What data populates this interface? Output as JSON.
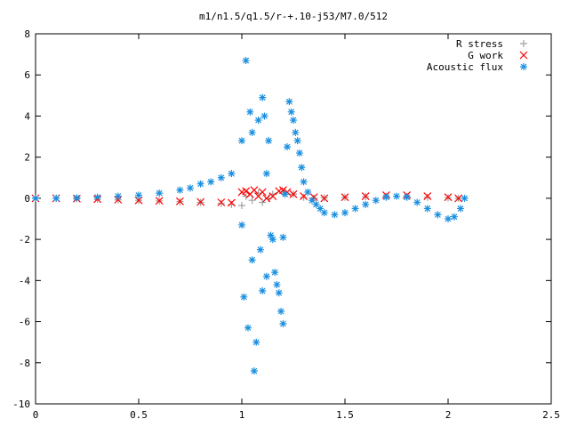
{
  "chart_data": {
    "type": "scatter",
    "title": "m1/n1.5/q1.5/r-+.10-j53/M7.0/512",
    "xlabel": "",
    "ylabel": "",
    "xlim": [
      0,
      2.5
    ],
    "ylim": [
      -10,
      8
    ],
    "x_ticks": [
      0,
      0.5,
      1,
      1.5,
      2,
      2.5
    ],
    "x_tick_labels": [
      "0",
      "0.5",
      "1",
      "1.5",
      "2",
      "2.5"
    ],
    "y_ticks": [
      -10,
      -8,
      -6,
      -4,
      -2,
      0,
      2,
      4,
      6,
      8
    ],
    "y_tick_labels": [
      "-10",
      "-8",
      "-6",
      "-4",
      "-2",
      "0",
      "2",
      "4",
      "6",
      "8"
    ],
    "grid": false,
    "legend_position": "top-right",
    "series": [
      {
        "name": "R stress",
        "marker": "plus",
        "color": "#a0a0a0",
        "x": [
          0.0,
          0.1,
          0.2,
          0.3,
          0.4,
          0.5,
          0.6,
          0.7,
          0.8,
          0.9,
          0.95,
          1.0,
          1.02,
          1.05,
          1.08,
          1.1,
          1.13,
          1.15,
          1.2,
          1.25,
          1.3,
          1.35,
          1.4,
          1.5,
          1.6,
          1.7,
          1.8,
          1.9,
          2.0,
          2.05
        ],
        "y": [
          0.0,
          0.0,
          -0.02,
          -0.05,
          -0.08,
          -0.1,
          -0.13,
          -0.16,
          -0.2,
          -0.25,
          -0.3,
          -0.35,
          0.1,
          -0.1,
          0.25,
          -0.2,
          0.0,
          0.2,
          0.3,
          0.2,
          0.05,
          0.0,
          0.02,
          0.05,
          0.08,
          0.1,
          0.1,
          0.05,
          0.02,
          0.0
        ]
      },
      {
        "name": "G work",
        "marker": "x",
        "color": "#ff0000",
        "x": [
          0.0,
          0.1,
          0.2,
          0.3,
          0.4,
          0.5,
          0.6,
          0.7,
          0.8,
          0.9,
          0.95,
          1.0,
          1.02,
          1.04,
          1.06,
          1.08,
          1.1,
          1.12,
          1.15,
          1.18,
          1.2,
          1.22,
          1.25,
          1.3,
          1.35,
          1.4,
          1.5,
          1.6,
          1.7,
          1.8,
          1.9,
          2.0,
          2.05
        ],
        "y": [
          0.0,
          0.0,
          -0.02,
          -0.04,
          -0.07,
          -0.1,
          -0.12,
          -0.15,
          -0.18,
          -0.2,
          -0.22,
          0.3,
          0.35,
          0.2,
          0.4,
          0.1,
          0.3,
          0.0,
          0.1,
          0.35,
          0.4,
          0.3,
          0.2,
          0.1,
          0.05,
          0.0,
          0.05,
          0.1,
          0.15,
          0.15,
          0.1,
          0.05,
          0.0
        ]
      },
      {
        "name": "Acoustic flux",
        "marker": "star",
        "color": "#1a8fe0",
        "x": [
          0.0,
          0.1,
          0.2,
          0.3,
          0.4,
          0.5,
          0.6,
          0.7,
          0.75,
          0.8,
          0.85,
          0.9,
          0.95,
          1.0,
          1.0,
          1.01,
          1.02,
          1.03,
          1.04,
          1.05,
          1.05,
          1.06,
          1.07,
          1.08,
          1.09,
          1.1,
          1.1,
          1.11,
          1.12,
          1.12,
          1.13,
          1.14,
          1.15,
          1.16,
          1.17,
          1.18,
          1.19,
          1.2,
          1.2,
          1.21,
          1.22,
          1.23,
          1.24,
          1.25,
          1.26,
          1.27,
          1.28,
          1.29,
          1.3,
          1.32,
          1.34,
          1.36,
          1.38,
          1.4,
          1.45,
          1.5,
          1.55,
          1.6,
          1.65,
          1.7,
          1.75,
          1.8,
          1.85,
          1.9,
          1.95,
          2.0,
          2.03,
          2.06,
          2.08
        ],
        "y": [
          0.0,
          0.0,
          0.02,
          0.05,
          0.1,
          0.15,
          0.25,
          0.4,
          0.5,
          0.7,
          0.8,
          1.0,
          1.2,
          2.8,
          -1.3,
          -4.8,
          6.7,
          -6.3,
          4.2,
          -3.0,
          3.2,
          -8.4,
          -7.0,
          3.8,
          -2.5,
          4.9,
          -4.5,
          4.0,
          1.2,
          -3.8,
          2.8,
          -1.8,
          -2.0,
          -3.6,
          -4.2,
          -4.6,
          -5.5,
          -6.1,
          -1.9,
          0.2,
          2.5,
          4.7,
          4.2,
          3.8,
          3.2,
          2.8,
          2.2,
          1.5,
          0.8,
          0.3,
          -0.1,
          -0.3,
          -0.5,
          -0.7,
          -0.8,
          -0.7,
          -0.5,
          -0.3,
          -0.1,
          0.05,
          0.1,
          0.05,
          -0.2,
          -0.5,
          -0.8,
          -1.0,
          -0.9,
          -0.5,
          0.0
        ]
      }
    ]
  }
}
